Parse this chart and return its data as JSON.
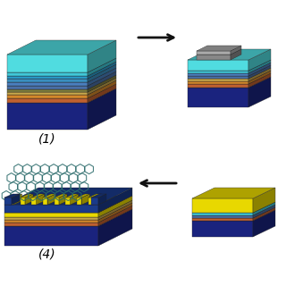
{
  "background_color": "#ffffff",
  "arrow_color": "#111111",
  "label_1": "(1)",
  "label_4": "(4)",
  "label_fontsize": 10,
  "fig_width": 3.2,
  "fig_height": 3.2,
  "dpi": 100,
  "step1_layers": [
    {
      "color": "#1a237e",
      "thick": 30
    },
    {
      "color": "#bf6030",
      "thick": 5
    },
    {
      "color": "#d4882a",
      "thick": 4
    },
    {
      "color": "#c8a84b",
      "thick": 3
    },
    {
      "color": "#808040",
      "thick": 3
    },
    {
      "color": "#4a6fa5",
      "thick": 4
    },
    {
      "color": "#4a7fbf",
      "thick": 4
    },
    {
      "color": "#3a8fbf",
      "thick": 4
    },
    {
      "color": "#2a9fcf",
      "thick": 3
    },
    {
      "color": "#40c8d8",
      "thick": 4
    },
    {
      "color": "#50dce0",
      "thick": 20
    }
  ],
  "step2_layers": [
    {
      "color": "#1a237e",
      "thick": 22
    },
    {
      "color": "#bf6030",
      "thick": 4
    },
    {
      "color": "#d4882a",
      "thick": 3
    },
    {
      "color": "#c8a84b",
      "thick": 3
    },
    {
      "color": "#4a6fa5",
      "thick": 3
    },
    {
      "color": "#4a7fbf",
      "thick": 3
    },
    {
      "color": "#40c8d8",
      "thick": 3
    },
    {
      "color": "#50dce0",
      "thick": 12
    }
  ],
  "step3_layers": [
    {
      "color": "#1a237e",
      "thick": 18
    },
    {
      "color": "#bf6030",
      "thick": 3
    },
    {
      "color": "#4a6fa5",
      "thick": 3
    },
    {
      "color": "#40c8d8",
      "thick": 3
    },
    {
      "color": "#e8d800",
      "thick": 16
    }
  ],
  "step4_base_layers": [
    {
      "color": "#1a237e",
      "thick": 22
    },
    {
      "color": "#bf6030",
      "thick": 4
    },
    {
      "color": "#d4882a",
      "thick": 3
    },
    {
      "color": "#c8a84b",
      "thick": 3
    },
    {
      "color": "#e8d800",
      "thick": 5
    }
  ],
  "cyan_color": "#50dce0",
  "yellow_color": "#e8d800",
  "dark_blue": "#1a237e",
  "electrode_blue": "#1a3a8a",
  "graphene_edge": "#2a6a6a"
}
